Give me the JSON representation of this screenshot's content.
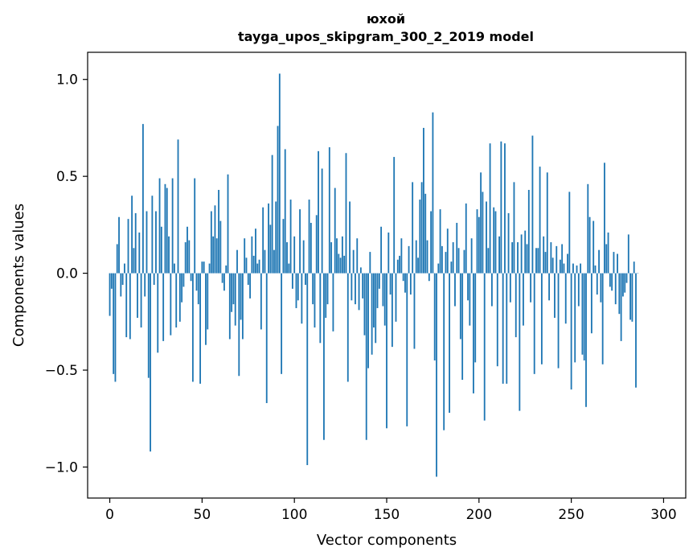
{
  "chart_data": {
    "type": "bar",
    "title": "юхой",
    "subtitle": "tayga_upos_skipgram_300_2_2019 model",
    "xlabel": "Vector components",
    "ylabel": "Components values",
    "xlim": [
      -12,
      312
    ],
    "ylim": [
      -1.16,
      1.14
    ],
    "xticks": [
      0,
      50,
      100,
      150,
      200,
      250,
      300
    ],
    "xtick_labels": [
      "0",
      "50",
      "100",
      "150",
      "200",
      "250",
      "300"
    ],
    "yticks": [
      -1.0,
      -0.5,
      0.0,
      0.5,
      1.0
    ],
    "ytick_labels": [
      "−1.0",
      "−0.5",
      "0.0",
      "0.5",
      "1.0"
    ],
    "bar_color": "#1f77b4",
    "values": [
      -0.22,
      -0.08,
      -0.52,
      -0.56,
      0.15,
      0.29,
      -0.12,
      -0.06,
      0.05,
      -0.33,
      0.28,
      -0.34,
      0.4,
      0.13,
      0.31,
      -0.23,
      0.21,
      -0.28,
      0.77,
      -0.12,
      0.32,
      -0.54,
      -0.92,
      0.4,
      -0.06,
      0.32,
      -0.41,
      0.49,
      0.24,
      -0.35,
      0.46,
      0.44,
      0.19,
      -0.32,
      0.49,
      0.05,
      -0.28,
      0.69,
      -0.25,
      -0.15,
      -0.07,
      0.16,
      0.24,
      0.17,
      -0.04,
      -0.56,
      0.49,
      -0.09,
      -0.16,
      -0.57,
      0.06,
      0.06,
      -0.37,
      -0.29,
      0.05,
      0.32,
      0.19,
      0.35,
      0.18,
      0.43,
      0.27,
      -0.05,
      -0.09,
      0.04,
      0.51,
      -0.34,
      -0.2,
      -0.16,
      -0.27,
      0.12,
      -0.53,
      -0.24,
      -0.34,
      0.18,
      0.08,
      -0.06,
      -0.13,
      0.19,
      0.09,
      0.23,
      0.05,
      0.07,
      -0.29,
      0.34,
      0.12,
      -0.67,
      0.36,
      0.25,
      0.61,
      0.12,
      0.37,
      0.76,
      1.03,
      -0.52,
      0.28,
      0.64,
      0.16,
      0.05,
      0.38,
      -0.08,
      0.19,
      -0.18,
      -0.14,
      0.33,
      -0.26,
      0.17,
      -0.06,
      -0.99,
      0.38,
      0.26,
      -0.16,
      -0.28,
      0.3,
      0.63,
      -0.36,
      0.54,
      -0.86,
      -0.23,
      -0.16,
      0.65,
      0.16,
      -0.3,
      0.44,
      0.18,
      0.1,
      0.08,
      0.19,
      0.09,
      0.62,
      -0.56,
      0.37,
      -0.14,
      0.12,
      -0.16,
      0.18,
      -0.19,
      0.03,
      -0.13,
      -0.32,
      -0.86,
      -0.49,
      0.11,
      -0.42,
      -0.28,
      -0.36,
      -0.18,
      -0.08,
      0.24,
      -0.17,
      -0.27,
      -0.8,
      0.21,
      -0.11,
      -0.38,
      0.6,
      -0.25,
      0.07,
      0.09,
      0.18,
      -0.04,
      -0.1,
      -0.79,
      0.14,
      -0.11,
      0.47,
      -0.39,
      0.17,
      0.08,
      0.38,
      0.47,
      0.75,
      0.41,
      0.17,
      -0.04,
      0.32,
      0.83,
      -0.45,
      -1.05,
      0.05,
      0.33,
      0.14,
      -0.81,
      0.11,
      0.23,
      -0.72,
      0.06,
      0.16,
      -0.17,
      0.26,
      0.13,
      -0.34,
      -0.55,
      0.12,
      0.36,
      -0.14,
      -0.27,
      0.18,
      -0.62,
      -0.46,
      0.33,
      0.29,
      0.52,
      0.42,
      -0.76,
      0.37,
      0.13,
      0.67,
      -0.17,
      0.34,
      0.32,
      -0.48,
      0.19,
      0.68,
      -0.57,
      0.67,
      -0.57,
      0.31,
      -0.15,
      0.16,
      0.47,
      -0.33,
      0.16,
      -0.71,
      0.2,
      -0.27,
      0.22,
      0.15,
      0.43,
      -0.15,
      0.71,
      -0.52,
      0.13,
      0.13,
      0.55,
      -0.47,
      0.19,
      0.11,
      0.52,
      -0.14,
      0.16,
      0.08,
      -0.23,
      0.14,
      -0.49,
      0.07,
      0.15,
      0.05,
      -0.26,
      0.1,
      0.42,
      -0.6,
      0.05,
      -0.46,
      0.04,
      -0.17,
      0.05,
      -0.42,
      -0.45,
      -0.69,
      0.46,
      0.29,
      -0.31,
      0.27,
      0.04,
      -0.11,
      0.12,
      -0.15,
      -0.47,
      0.57,
      0.15,
      0.21,
      -0.07,
      -0.09,
      0.11,
      -0.16,
      0.1,
      -0.21,
      -0.35,
      -0.12,
      -0.1,
      -0.05,
      0.2,
      -0.24,
      -0.25,
      0.06,
      -0.59,
      0.0
    ]
  }
}
